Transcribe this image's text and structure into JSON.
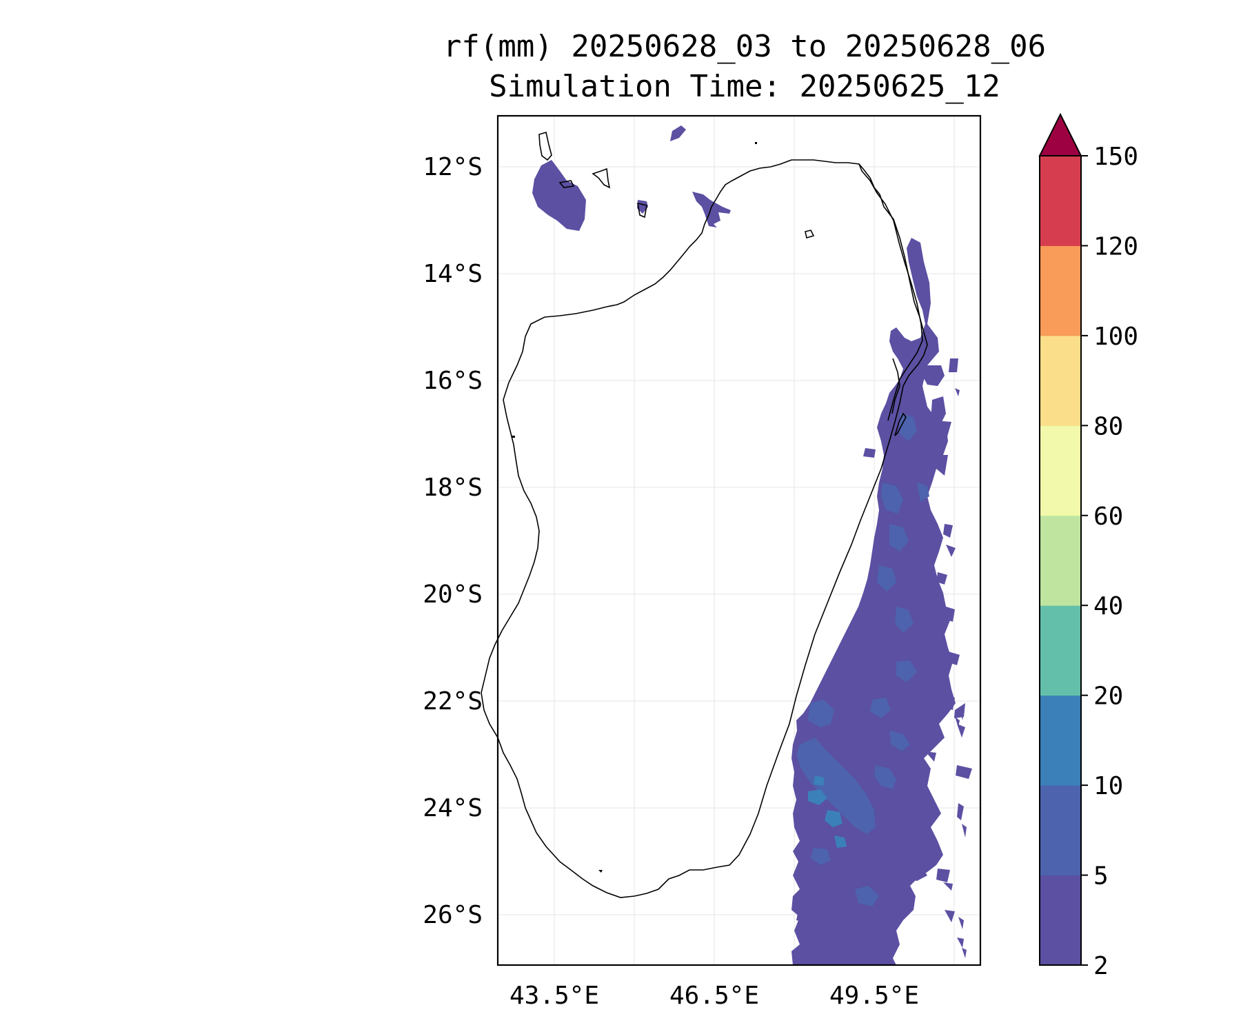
{
  "title": {
    "line1": "rf(mm) 20250628_03 to 20250628_06",
    "line2": "Simulation Time: 20250625_12"
  },
  "map": {
    "lat_ticks": [
      "12°S",
      "14°S",
      "16°S",
      "18°S",
      "20°S",
      "22°S",
      "24°S",
      "26°S"
    ],
    "lon_ticks": [
      "43.5°E",
      "46.5°E",
      "49.5°E"
    ],
    "lat_range": [
      -27,
      -11
    ],
    "lon_range": [
      42.5,
      51.5
    ],
    "grid": true
  },
  "colorbar": {
    "levels": [
      "2",
      "5",
      "10",
      "20",
      "40",
      "60",
      "80",
      "100",
      "120",
      "150"
    ],
    "colors": [
      "#5b50a2",
      "#4d63ad",
      "#3b80b9",
      "#64bfaa",
      "#bee4a0",
      "#f2f9aa",
      "#fbde89",
      "#f99c5a",
      "#d63e50"
    ],
    "extend_color": "#9e0142"
  },
  "colors": {
    "rain_2_5": "#5b50a2",
    "rain_5_10": "#4d63ad",
    "rain_10_20": "#3b80b9"
  }
}
